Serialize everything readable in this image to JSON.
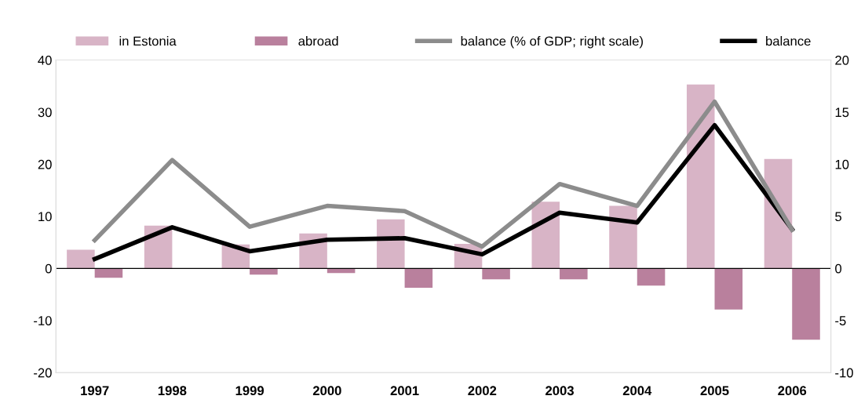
{
  "chart_data": {
    "type": "bar",
    "categories": [
      "1997",
      "1998",
      "1999",
      "2000",
      "2001",
      "2002",
      "2003",
      "2004",
      "2005",
      "2006"
    ],
    "series": [
      {
        "name": "in Estonia",
        "color": "#d8b4c6",
        "values": [
          3.6,
          8.2,
          4.6,
          6.7,
          9.4,
          4.7,
          12.8,
          12.0,
          35.3,
          21.0
        ]
      },
      {
        "name": "abroad",
        "color": "#b9809d",
        "values": [
          -1.8,
          0,
          -1.2,
          -0.9,
          -3.7,
          -2.1,
          -2.1,
          -3.3,
          -7.9,
          -13.7
        ]
      },
      {
        "name": "balance (% of GDP; right scale)",
        "type": "line",
        "axis": "y2",
        "color": "#8c8c8c",
        "values": [
          2.7,
          10.4,
          4.0,
          6.0,
          5.5,
          2.1,
          8.1,
          6.0,
          16.0,
          3.7
        ]
      },
      {
        "name": "balance",
        "type": "line",
        "color": "#000000",
        "values": [
          1.8,
          7.9,
          3.3,
          5.5,
          5.8,
          2.7,
          10.7,
          8.8,
          27.5,
          7.5
        ]
      }
    ],
    "ylim": [
      -20,
      40
    ],
    "yticks": [
      -20,
      -10,
      0,
      10,
      20,
      30,
      40
    ],
    "y2lim": [
      -10,
      20
    ],
    "y2ticks": [
      -10,
      -5,
      0,
      5,
      10,
      15,
      20
    ],
    "ref_lines": [
      {
        "axis": "y",
        "value": 0,
        "color": "#000000"
      }
    ],
    "grid": false,
    "legend": "top",
    "marker": "none",
    "line_style": "solid"
  }
}
